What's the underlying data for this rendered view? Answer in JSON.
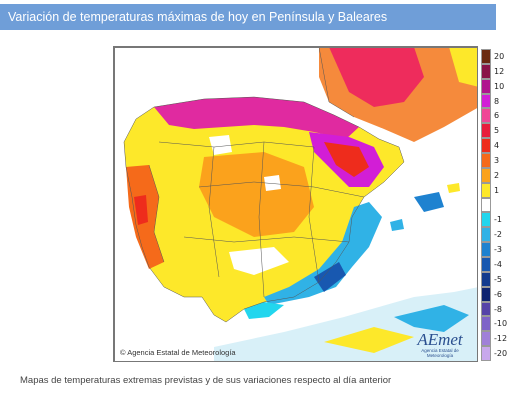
{
  "header": {
    "title": "Variación de temperaturas máximas de hoy en Península y Baleares"
  },
  "map": {
    "copyright": "© Agencia Estatal de Meteorología",
    "logo_text": "AEmet",
    "logo_agency": "Agencia Estatal de Meteorología"
  },
  "legend": {
    "items": [
      {
        "label": "20",
        "color": "#6b2a10"
      },
      {
        "label": "12",
        "color": "#8a1448"
      },
      {
        "label": "10",
        "color": "#b0148e"
      },
      {
        "label": "8",
        "color": "#d21ed6"
      },
      {
        "label": "6",
        "color": "#f04696"
      },
      {
        "label": "5",
        "color": "#e81d3c"
      },
      {
        "label": "4",
        "color": "#ee2c1c"
      },
      {
        "label": "3",
        "color": "#f56a1a"
      },
      {
        "label": "2",
        "color": "#fba21c"
      },
      {
        "label": "1",
        "color": "#fde82a"
      },
      {
        "label": "",
        "color": "#ffffff"
      },
      {
        "label": "-1",
        "color": "#22d6ee"
      },
      {
        "label": "-2",
        "color": "#30b2e6"
      },
      {
        "label": "-3",
        "color": "#1e82d0"
      },
      {
        "label": "-4",
        "color": "#1858b0"
      },
      {
        "label": "-5",
        "color": "#123a8e"
      },
      {
        "label": "-6",
        "color": "#0e2470"
      },
      {
        "label": "-8",
        "color": "#5644a8"
      },
      {
        "label": "-10",
        "color": "#7e64c8"
      },
      {
        "label": "-12",
        "color": "#a080d8"
      },
      {
        "label": "-20",
        "color": "#c8a8ec"
      }
    ]
  },
  "footer": {
    "caption": "Mapas de temperaturas extremas previstas y de sus variaciones respecto al día anterior"
  }
}
